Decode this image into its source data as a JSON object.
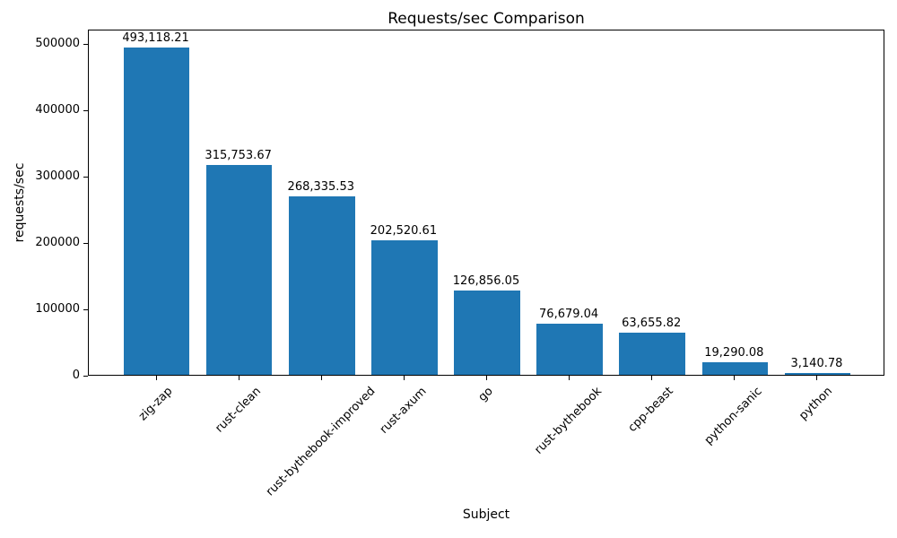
{
  "window": {
    "background_color": "#ffffff"
  },
  "chart_data": {
    "type": "bar",
    "title": "Requests/sec Comparison",
    "xlabel": "Subject",
    "ylabel": "requests/sec",
    "categories": [
      "zig-zap",
      "rust-clean",
      "rust-bythebook-improved",
      "rust-axum",
      "go",
      "rust-bythebook",
      "cpp-beast",
      "python-sanic",
      "python"
    ],
    "values": [
      493118.21,
      315753.67,
      268335.53,
      202520.61,
      126856.05,
      76679.04,
      63655.82,
      19290.08,
      3140.78
    ],
    "bar_labels": [
      "493,118.21",
      "315,753.67",
      "268,335.53",
      "202,520.61",
      "126,856.05",
      "76,679.04",
      "63,655.82",
      "19,290.08",
      "3,140.78"
    ],
    "yticks": [
      0,
      100000,
      200000,
      300000,
      400000,
      500000
    ],
    "ytick_labels": [
      "0",
      "100000",
      "200000",
      "300000",
      "400000",
      "500000"
    ],
    "ylim": [
      0,
      521600
    ],
    "bar_color": "#1f77b4",
    "axis_color": "#000000",
    "grid": false,
    "legend_position": "none"
  }
}
